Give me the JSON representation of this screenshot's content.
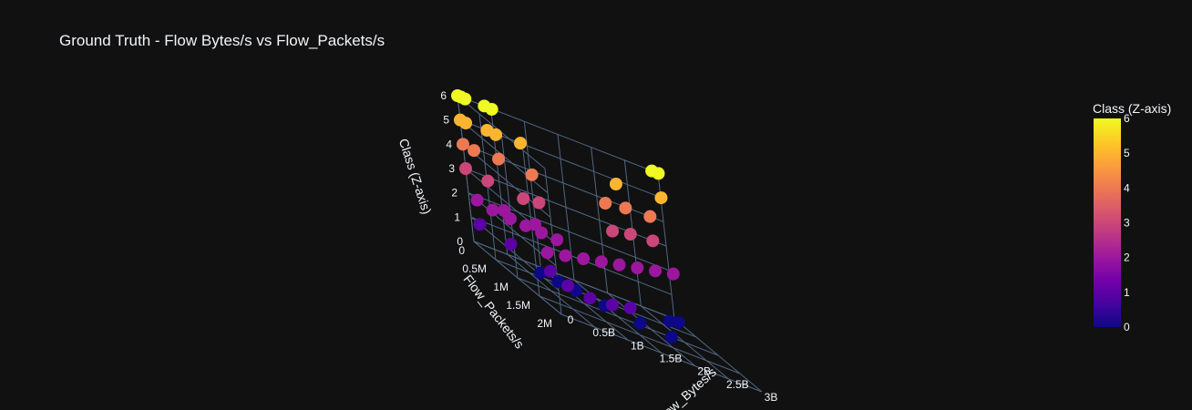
{
  "chart_data": {
    "type": "scatter",
    "title": "Ground Truth - Flow Bytes/s vs Flow_Packets/s",
    "xlabel": "Flow_Bytes/s",
    "ylabel": "Flow_Packets/s",
    "zlabel": "Class (Z-axis)",
    "x_ticks": [
      "0",
      "0.5B",
      "1B",
      "1.5B",
      "2B",
      "2.5B",
      "3B"
    ],
    "y_ticks": [
      "0",
      "0.5M",
      "1M",
      "1.5M",
      "2M"
    ],
    "z_ticks": [
      "0",
      "1",
      "2",
      "3",
      "4",
      "5",
      "6"
    ],
    "xlim": [
      0,
      3000000000
    ],
    "ylim": [
      0,
      2000000
    ],
    "zlim": [
      0,
      6
    ],
    "colorbar": {
      "title": "Class (Z-axis)",
      "ticks": [
        "0",
        "1",
        "2",
        "3",
        "4",
        "5",
        "6"
      ],
      "range": [
        0,
        6
      ],
      "colorscale": [
        "#0d0887",
        "#46039f",
        "#7201a8",
        "#9c179e",
        "#bd3786",
        "#d8576b",
        "#ed7953",
        "#fb9f3a",
        "#fdca26",
        "#f0f921"
      ]
    },
    "points": [
      {
        "x": 0,
        "y": 0,
        "z": 6
      },
      {
        "x": 50000000.0,
        "y": 0,
        "z": 6
      },
      {
        "x": 100000000.0,
        "y": 20000.0,
        "z": 6
      },
      {
        "x": 400000000.0,
        "y": 0,
        "z": 6
      },
      {
        "x": 500000000.0,
        "y": 20000.0,
        "z": 6
      },
      {
        "x": 2900000000.0,
        "y": 10000.0,
        "z": 6
      },
      {
        "x": 3000000000.0,
        "y": 10000.0,
        "z": 6
      },
      {
        "x": 0,
        "y": 0,
        "z": 5
      },
      {
        "x": 50000000.0,
        "y": 50000.0,
        "z": 5
      },
      {
        "x": 400000000.0,
        "y": 0,
        "z": 5
      },
      {
        "x": 500000000.0,
        "y": 50000.0,
        "z": 5
      },
      {
        "x": 900000000.0,
        "y": 0,
        "z": 5
      },
      {
        "x": 2200000000.0,
        "y": 200000.0,
        "z": 5
      },
      {
        "x": 3000000000.0,
        "y": 10000.0,
        "z": 5
      },
      {
        "x": 0,
        "y": 0,
        "z": 4
      },
      {
        "x": 100000000.0,
        "y": 100000.0,
        "z": 4
      },
      {
        "x": 500000000.0,
        "y": 50000.0,
        "z": 4
      },
      {
        "x": 900000000.0,
        "y": 200000.0,
        "z": 4
      },
      {
        "x": 2000000000.0,
        "y": 200000.0,
        "z": 4
      },
      {
        "x": 2400000000.0,
        "y": 50000.0,
        "z": 4
      },
      {
        "x": 2800000000.0,
        "y": 0,
        "z": 4
      },
      {
        "x": 0,
        "y": 0,
        "z": 3
      },
      {
        "x": 200000000.0,
        "y": 200000.0,
        "z": 3
      },
      {
        "x": 600000000.0,
        "y": 400000.0,
        "z": 3
      },
      {
        "x": 900000000.0,
        "y": 300000.0,
        "z": 3
      },
      {
        "x": 2000000000.0,
        "y": 300000.0,
        "z": 3
      },
      {
        "x": 2400000000.0,
        "y": 100000.0,
        "z": 3
      },
      {
        "x": 2800000000.0,
        "y": 0,
        "z": 3
      },
      {
        "x": 0,
        "y": 200000.0,
        "z": 2
      },
      {
        "x": 400000000.0,
        "y": 200000.0,
        "z": 2
      },
      {
        "x": 800000000.0,
        "y": 300000.0,
        "z": 2
      },
      {
        "x": 100000000.0,
        "y": 400000.0,
        "z": 2
      },
      {
        "x": 300000000.0,
        "y": 500000.0,
        "z": 2
      },
      {
        "x": 500000000.0,
        "y": 550000.0,
        "z": 2
      },
      {
        "x": 700000000.0,
        "y": 600000.0,
        "z": 2
      },
      {
        "x": 900000000.0,
        "y": 650000.0,
        "z": 2
      },
      {
        "x": 200000000.0,
        "y": 1500000.0,
        "z": 2
      },
      {
        "x": 600000000.0,
        "y": 1300000.0,
        "z": 2
      },
      {
        "x": 1000000000.0,
        "y": 1100000.0,
        "z": 2
      },
      {
        "x": 1400000000.0,
        "y": 900000.0,
        "z": 2
      },
      {
        "x": 1800000000.0,
        "y": 700000.0,
        "z": 2
      },
      {
        "x": 2200000000.0,
        "y": 500000.0,
        "z": 2
      },
      {
        "x": 2600000000.0,
        "y": 300000.0,
        "z": 2
      },
      {
        "x": 3000000000.0,
        "y": 100000.0,
        "z": 2
      },
      {
        "x": 0,
        "y": 200000.0,
        "z": 1
      },
      {
        "x": 200000000.0,
        "y": 600000.0,
        "z": 1
      },
      {
        "x": 400000000.0,
        "y": 1200000.0,
        "z": 1
      },
      {
        "x": 400000000.0,
        "y": 1600000.0,
        "z": 1
      },
      {
        "x": 600000000.0,
        "y": 1800000.0,
        "z": 1
      },
      {
        "x": 1000000000.0,
        "y": 1700000.0,
        "z": 1
      },
      {
        "x": 1400000000.0,
        "y": 1500000.0,
        "z": 1
      },
      {
        "x": 800000000.0,
        "y": 300000.0,
        "z": 0
      },
      {
        "x": 1000000000.0,
        "y": 400000.0,
        "z": 0
      },
      {
        "x": 1200000000.0,
        "y": 500000.0,
        "z": 0
      },
      {
        "x": 1500000000.0,
        "y": 700000.0,
        "z": 0
      },
      {
        "x": 1900000000.0,
        "y": 900000.0,
        "z": 0
      },
      {
        "x": 2300000000.0,
        "y": 1000000.0,
        "z": 0
      },
      {
        "x": 2800000000.0,
        "y": 200000.0,
        "z": 0
      },
      {
        "x": 3000000000.0,
        "y": 100000.0,
        "z": 0
      }
    ]
  }
}
